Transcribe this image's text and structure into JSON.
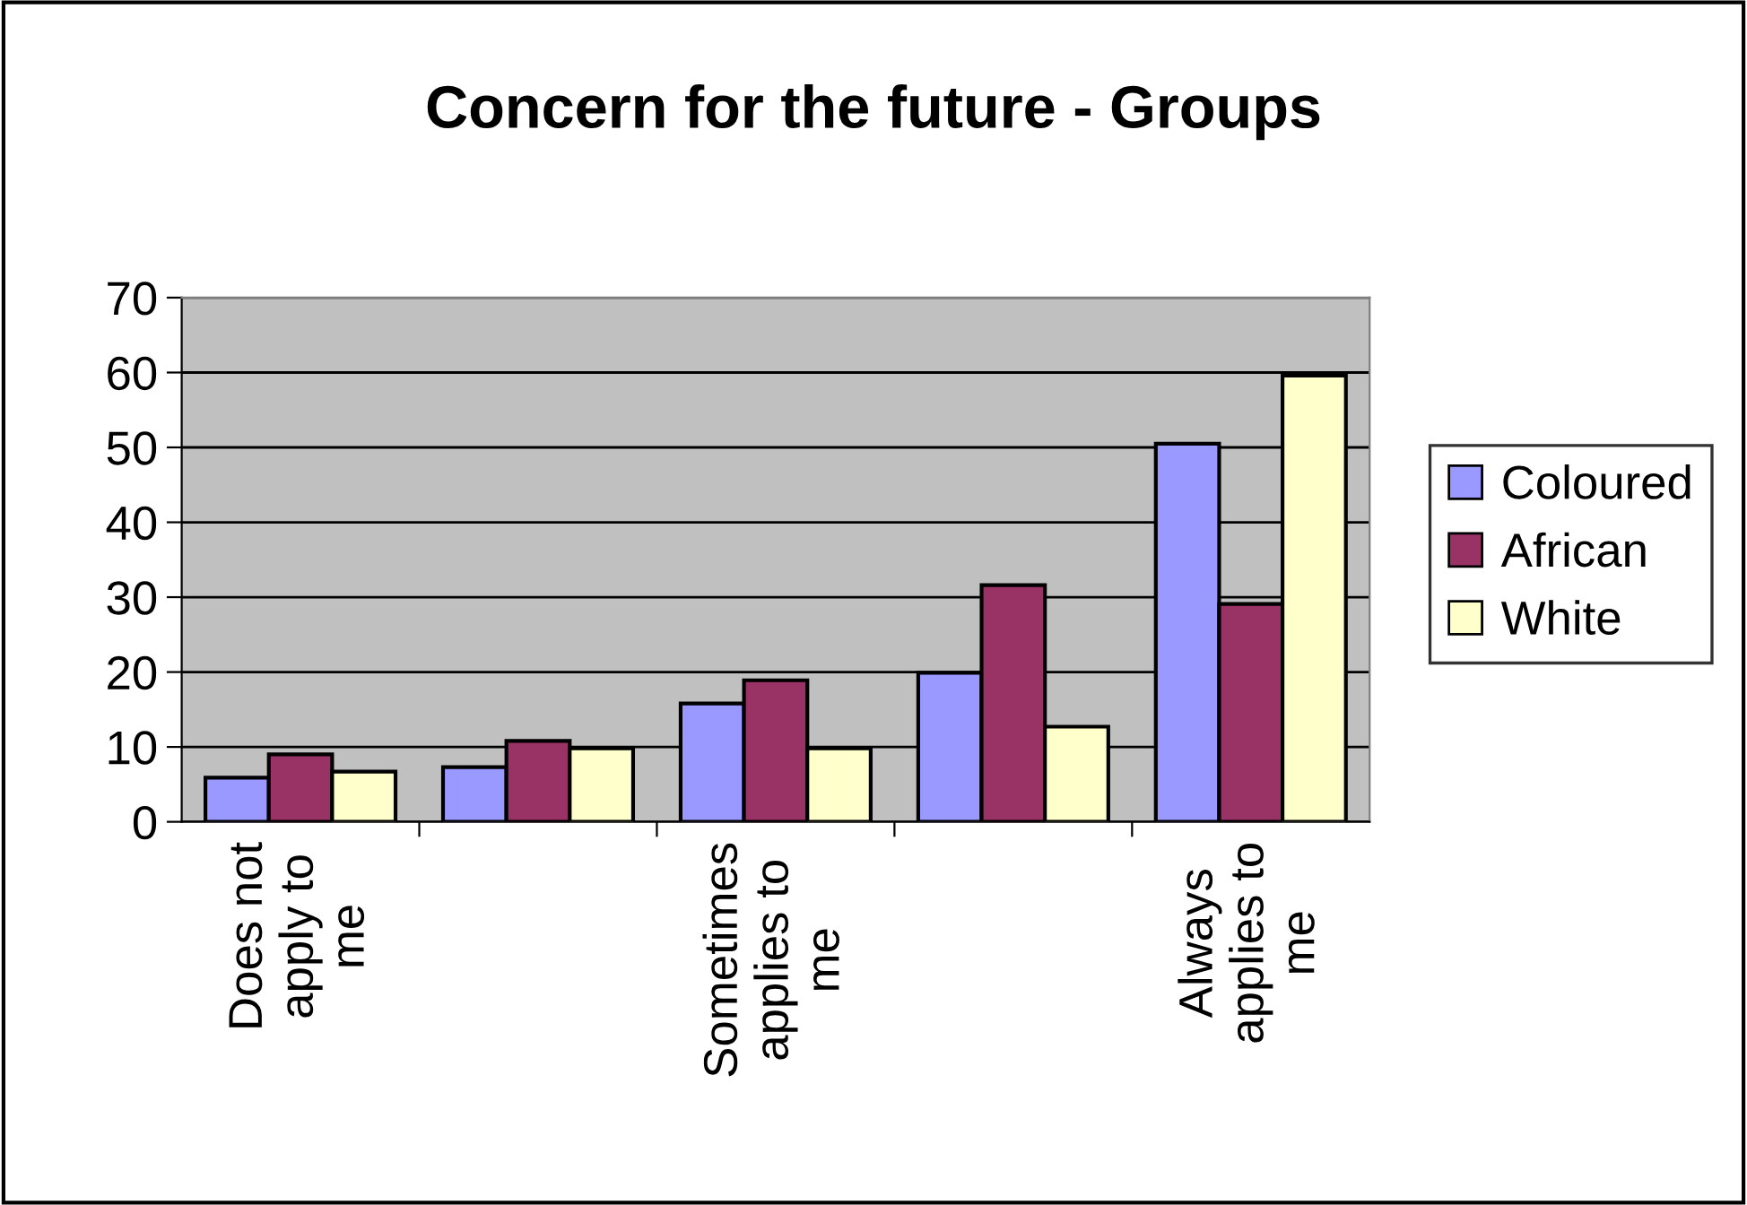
{
  "chart_data": {
    "type": "bar",
    "title": "Concern for the future - Groups",
    "categories": [
      "Does not\napply to\nme",
      null,
      "Sometimes\napplies to\nme",
      null,
      "Always\napplies to\nme"
    ],
    "series": [
      {
        "name": "Coloured",
        "color": "#9999ff",
        "values": [
          5.9,
          7.3,
          15.8,
          19.9,
          50.5
        ]
      },
      {
        "name": "African",
        "color": "#993366",
        "values": [
          9.0,
          10.8,
          18.9,
          31.6,
          29.1
        ]
      },
      {
        "name": "White",
        "color": "#ffffcc",
        "values": [
          6.7,
          9.8,
          9.8,
          12.7,
          59.6
        ]
      }
    ],
    "ylim": [
      0,
      70
    ],
    "yticks": [
      0,
      10,
      20,
      30,
      40,
      50,
      60,
      70
    ],
    "grid": "y",
    "legend": "right"
  }
}
